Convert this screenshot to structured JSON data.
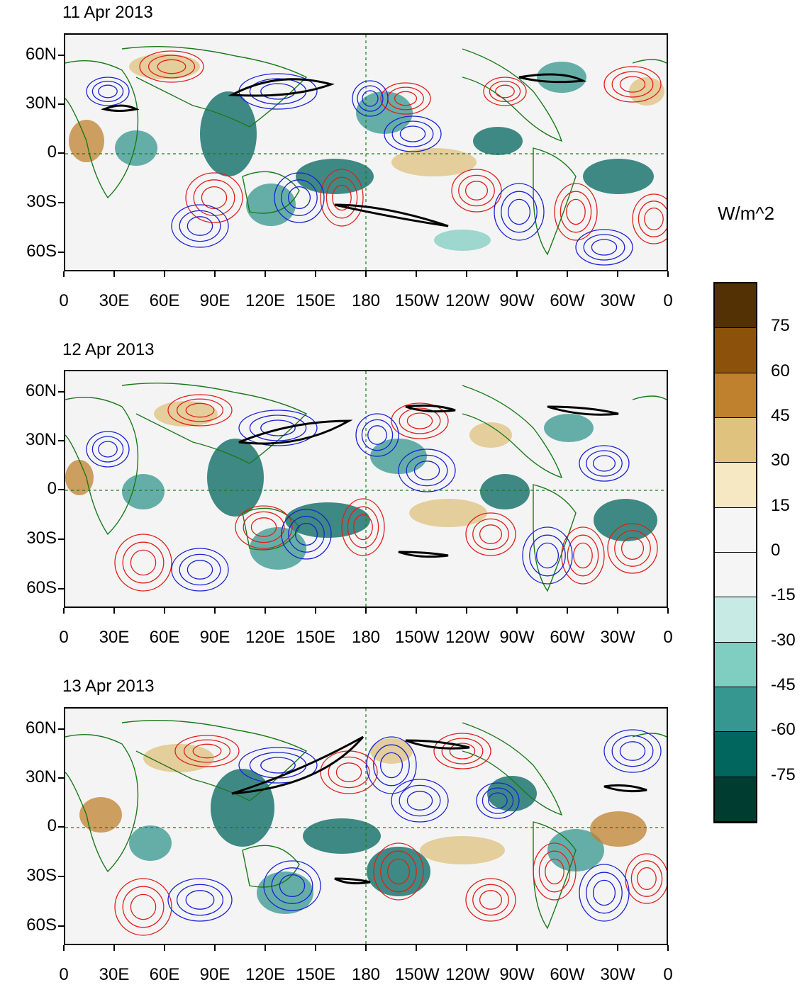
{
  "units": "W/m^2",
  "panels": [
    {
      "title": "11 Apr 2013"
    },
    {
      "title": "12 Apr 2013"
    },
    {
      "title": "13 Apr 2013"
    }
  ],
  "lat_labels": [
    "60N",
    "30N",
    "0",
    "30S",
    "60S"
  ],
  "lon_labels": [
    "0",
    "30E",
    "60E",
    "90E",
    "120E",
    "150E",
    "180",
    "150W",
    "120W",
    "90W",
    "60W",
    "30W",
    "0"
  ],
  "colorbar": {
    "labels": [
      "75",
      "60",
      "45",
      "30",
      "15",
      "0",
      "-15",
      "-30",
      "-45",
      "-60",
      "-75"
    ],
    "colors": [
      "#543005",
      "#8c510a",
      "#bf812d",
      "#dfc27d",
      "#f6e8c3",
      "#f5f5f5",
      "#f5f5f5",
      "#c7eae5",
      "#80cdc1",
      "#35978f",
      "#01665e",
      "#003c30"
    ]
  },
  "colors": {
    "positive_contour": "#e0201b",
    "negative_contour": "#1a22d6",
    "coastline": "#1a7a1a",
    "thick_contour": "#000000"
  }
}
